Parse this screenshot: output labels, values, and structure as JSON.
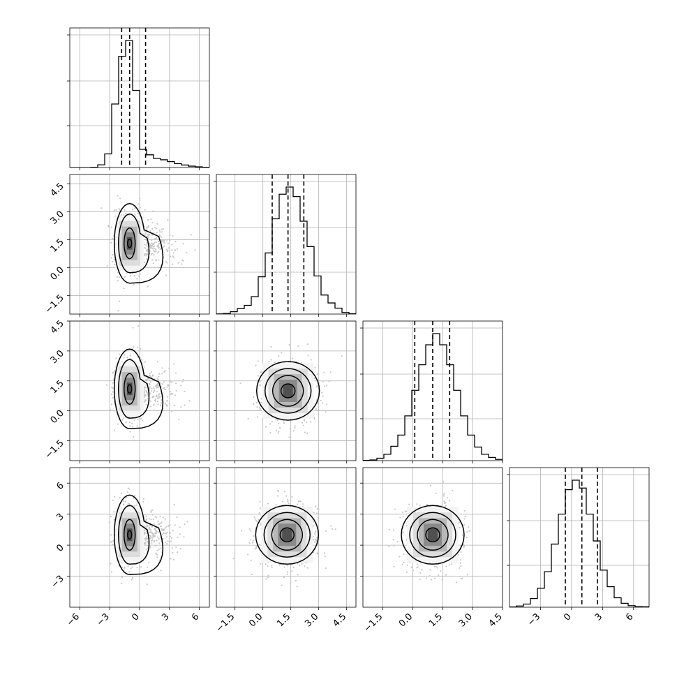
{
  "chart_data": {
    "type": "corner",
    "title": "",
    "variables": 4,
    "grid": true,
    "x_ticks": [
      [
        -6,
        -3,
        0,
        3,
        6
      ],
      [
        -1.5,
        0.0,
        1.5,
        3.0,
        4.5
      ],
      [
        -1.5,
        0.0,
        1.5,
        3.0,
        4.5
      ],
      [
        -3,
        0,
        3,
        6
      ]
    ],
    "x_tick_labels": [
      [
        "−6",
        "−3",
        "0",
        "3",
        "6"
      ],
      [
        "−1.5",
        "0.0",
        "1.5",
        "3.0",
        "4.5"
      ],
      [
        "−1.5",
        "0.0",
        "1.5",
        "3.0",
        "4.5"
      ],
      [
        "−3",
        "0",
        "3",
        "6"
      ]
    ],
    "y_ticks": [
      null,
      [
        -1.5,
        0.0,
        1.5,
        3.0,
        4.5
      ],
      [
        -1.5,
        0.0,
        1.5,
        3.0,
        4.5
      ],
      [
        -3,
        0,
        3,
        6
      ]
    ],
    "y_tick_labels": [
      null,
      [
        "−1.5",
        "0.0",
        "1.5",
        "3.0",
        "4.5"
      ],
      [
        "−1.5",
        "0.0",
        "1.5",
        "3.0",
        "4.5"
      ],
      [
        "−3",
        "0",
        "3",
        "6"
      ]
    ],
    "ranges": [
      [
        -7.0,
        7.0
      ],
      [
        -2.5,
        5.0
      ],
      [
        -2.5,
        4.5
      ],
      [
        -6.0,
        7.5
      ]
    ],
    "histograms": [
      {
        "bin_edges": [
          -7.0,
          -6.3,
          -5.6,
          -4.9,
          -4.2,
          -3.5,
          -2.8,
          -2.1,
          -1.4,
          -0.7,
          0.0,
          0.7,
          1.4,
          2.1,
          2.8,
          3.5,
          4.2,
          4.9,
          5.6,
          6.3,
          7.0
        ],
        "counts": [
          0,
          0,
          0,
          5,
          60,
          300,
          1400,
          2450,
          2800,
          1700,
          400,
          280,
          200,
          170,
          130,
          85,
          55,
          30,
          15,
          5
        ],
        "quantiles": [
          -1.8,
          -1.0,
          0.6
        ]
      },
      {
        "bin_edges": [
          -2.5,
          -2.125,
          -1.75,
          -1.375,
          -1.0,
          -0.625,
          -0.25,
          0.125,
          0.5,
          0.875,
          1.25,
          1.625,
          2.0,
          2.375,
          2.75,
          3.125,
          3.5,
          3.875,
          4.25,
          4.625,
          5.0
        ],
        "counts": [
          2,
          8,
          30,
          70,
          110,
          220,
          470,
          770,
          1200,
          1510,
          1600,
          1480,
          1170,
          850,
          480,
          240,
          140,
          75,
          20,
          4
        ],
        "quantiles": [
          0.5,
          1.35,
          2.2
        ]
      },
      {
        "bin_edges": [
          -2.5,
          -2.15,
          -1.8,
          -1.45,
          -1.1,
          -0.75,
          -0.4,
          -0.05,
          0.3,
          0.65,
          1.0,
          1.35,
          1.7,
          2.05,
          2.4,
          2.75,
          3.1,
          3.45,
          3.8,
          4.15,
          4.5
        ],
        "counts": [
          3,
          8,
          30,
          80,
          180,
          320,
          560,
          880,
          1200,
          1450,
          1590,
          1450,
          1200,
          880,
          560,
          320,
          170,
          80,
          40,
          15
        ],
        "quantiles": [
          0.1,
          1.0,
          1.85
        ]
      },
      {
        "bin_edges": [
          -6.0,
          -5.325,
          -4.65,
          -3.975,
          -3.3,
          -2.625,
          -1.95,
          -1.275,
          -0.6,
          0.075,
          0.75,
          1.425,
          2.1,
          2.775,
          3.45,
          4.125,
          4.8,
          5.475,
          6.15,
          6.825,
          7.5
        ],
        "counts": [
          3,
          15,
          40,
          110,
          240,
          450,
          800,
          1180,
          1490,
          1610,
          1510,
          1180,
          840,
          470,
          260,
          120,
          50,
          20,
          8,
          5
        ],
        "quantiles": [
          -0.6,
          1.0,
          2.5
        ]
      }
    ],
    "pairs": [
      {
        "x_var": 0,
        "y_var": 1,
        "peak": [
          -1.0,
          1.3
        ]
      },
      {
        "x_var": 0,
        "y_var": 2,
        "peak": [
          -1.0,
          1.1
        ]
      },
      {
        "x_var": 1,
        "y_var": 2,
        "peak": [
          1.35,
          1.0
        ]
      },
      {
        "x_var": 0,
        "y_var": 3,
        "peak": [
          -1.0,
          1.0
        ]
      },
      {
        "x_var": 1,
        "y_var": 3,
        "peak": [
          1.3,
          1.0
        ]
      },
      {
        "x_var": 2,
        "y_var": 3,
        "peak": [
          1.0,
          1.0
        ]
      }
    ],
    "colors": {
      "line": "#000000",
      "grid": "#b0b0b0",
      "scatter": "#c8c8c8",
      "frame": "#000000"
    }
  }
}
